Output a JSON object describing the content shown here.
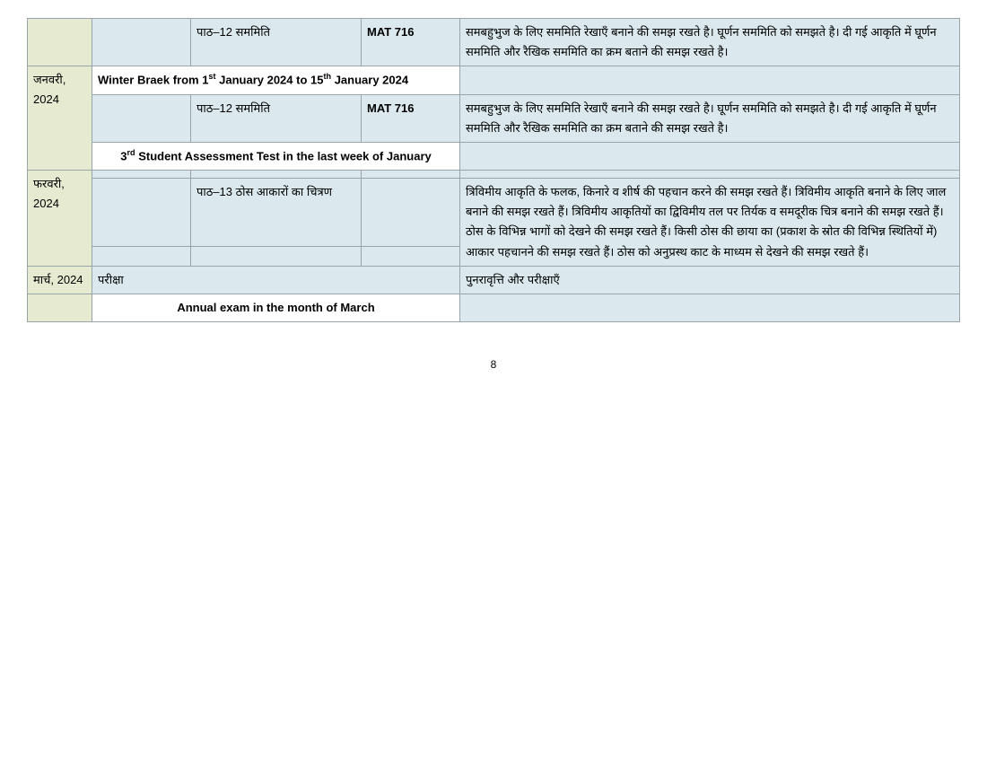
{
  "pageNumber": "8",
  "colors": {
    "green": "#e6ead0",
    "blue": "#dbe9ee",
    "white": "#ffffff",
    "border": "#9aa5aa"
  },
  "rows": {
    "r1_topic": "पाठ–12 सममिति",
    "r1_code": "MAT 716",
    "r1_desc": "समबहुभुज के लिए सममिति रेखाएँ बनाने की समझ रखते है। घूर्णन सममिति को समझते है। दी गई आकृति में घूर्णन सममिति और रैखिक सममिति का क्रम बताने की समझ रखते है।",
    "jan_month": "जनवरी, 2024",
    "jan_break_prefix": "Winter Braek from 1",
    "jan_break_mid": " January 2024 to 15",
    "jan_break_suffix": " January 2024",
    "jan_topic": "पाठ–12 सममिति",
    "jan_code": "MAT 716",
    "jan_desc": "समबहुभुज के लिए सममिति रेखाएँ बनाने की समझ रखते है। घूर्णन सममिति को समझते है। दी गई आकृति में घूर्णन सममिति और रैखिक सममिति का क्रम बताने की समझ रखते है।",
    "jan_assess_prefix": "3",
    "jan_assess_suffix": " Student Assessment Test in the last week of January",
    "feb_month": "फरवरी, 2024",
    "feb_topic": "पाठ–13 ठोस आकारों का चित्रण",
    "feb_desc": "त्रिविमीय आकृति के फलक, किनारे व शीर्ष की पहचान करने की समझ रखते हैं। त्रिविमीय आकृति बनाने के लिए जाल बनाने की समझ रखते हैं। त्रिविमीय आकृतियों का द्विविमीय तल पर तिर्यक व समदूरीक चित्र बनाने की समझ रखते हैं। ठोस के विभिन्न भागों को देखने की समझ रखते हैं। किसी ठोस की छाया का (प्रकाश के स्रोत की विभिन्न स्थितियों में) आकार पहचानने की समझ रखते हैं। ठोस को अनुप्रस्थ काट के माध्यम से देखने की समझ रखते हैं।",
    "mar_month": "मार्च, 2024",
    "mar_exam": "परीक्षा",
    "mar_desc": "पुनरावृत्ति और परीक्षाएँ",
    "annual": "Annual exam in the month of  March"
  }
}
